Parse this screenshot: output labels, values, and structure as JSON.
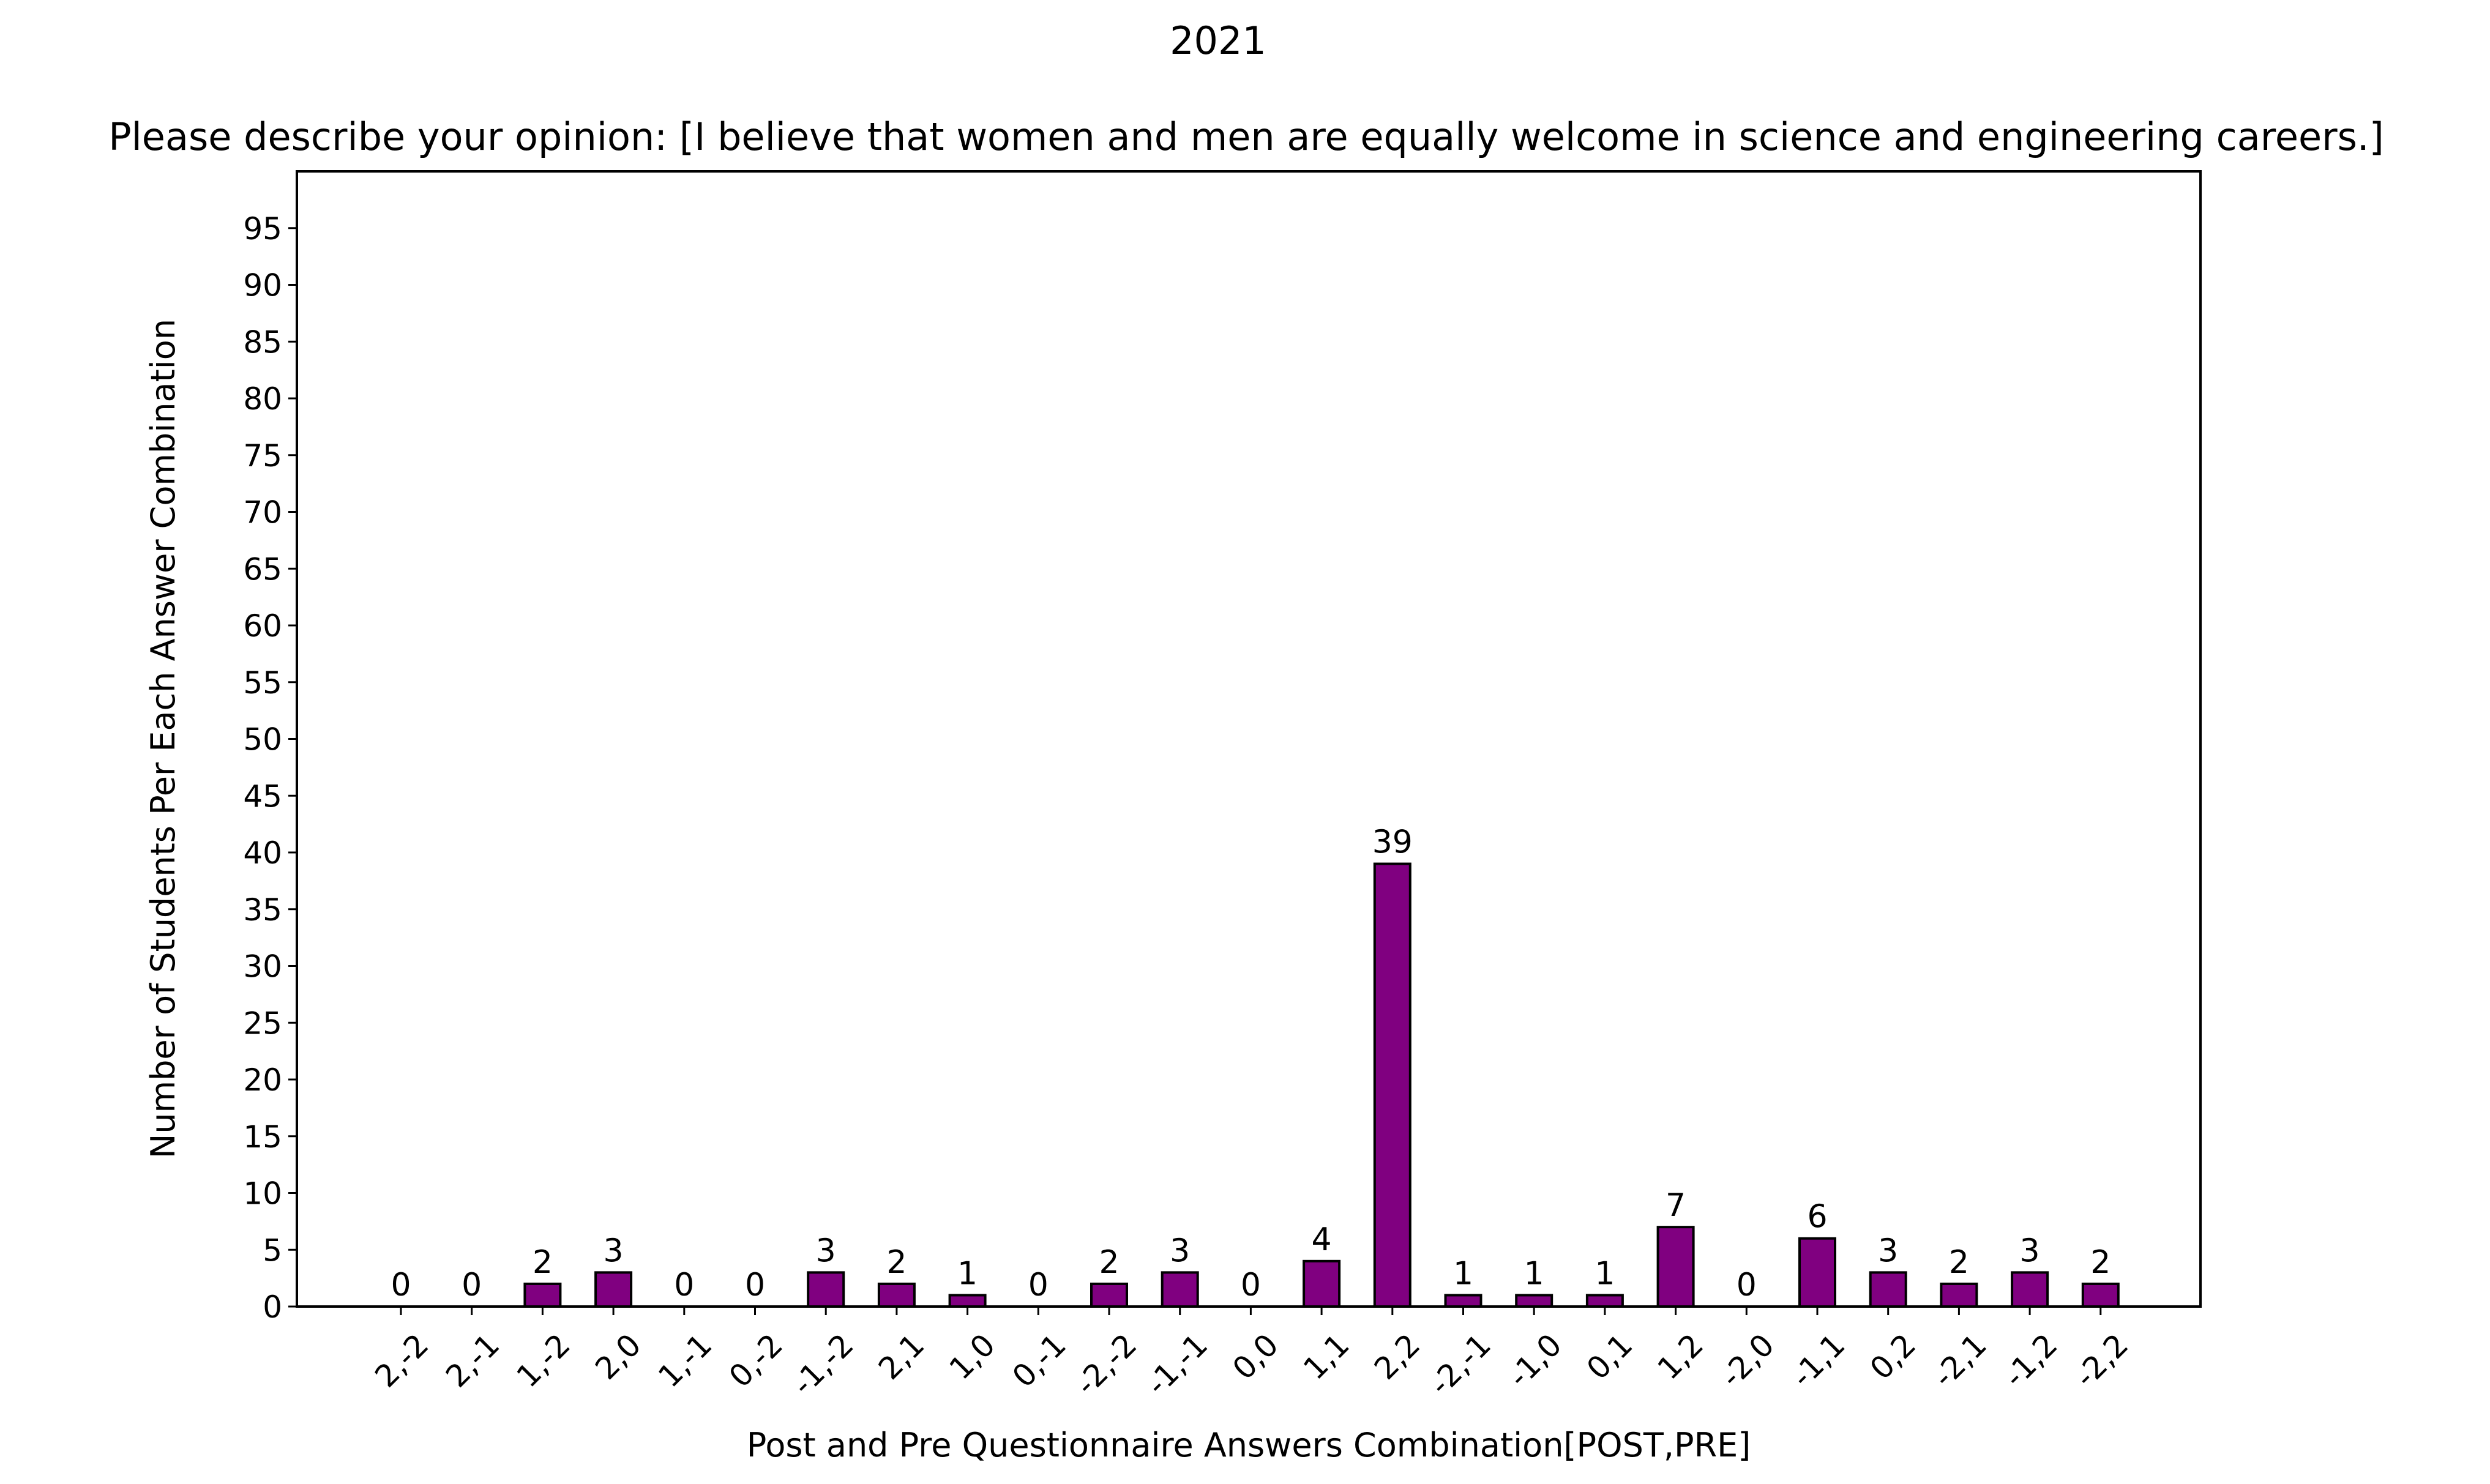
{
  "chart_data": {
    "type": "bar",
    "suptitle": "2021",
    "title": "Please describe your opinion: [I believe that women and men are equally welcome in science and engineering careers.]",
    "xlabel": "Post and Pre Questionnaire Answers Combination[POST,PRE]",
    "ylabel": "Number of Students Per Each Answer Combination",
    "categories": [
      "2,-2",
      "2,-1",
      "1,-2",
      "2,0",
      "1,-1",
      "0,-2",
      "-1,-2",
      "2,1",
      "1,0",
      "0,-1",
      "-2,-2",
      "-1,-1",
      "0,0",
      "1,1",
      "2,2",
      "-2,-1",
      "-1,0",
      "0,1",
      "1,2",
      "-2,0",
      "-1,1",
      "0,2",
      "-2,1",
      "-1,2",
      "-2,2"
    ],
    "values": [
      0,
      0,
      2,
      3,
      0,
      0,
      3,
      2,
      1,
      0,
      2,
      3,
      0,
      4,
      39,
      1,
      1,
      1,
      7,
      0,
      6,
      3,
      2,
      3,
      2
    ],
    "ylim": [
      0,
      100
    ],
    "yticks": [
      0,
      5,
      10,
      15,
      20,
      25,
      30,
      35,
      40,
      45,
      50,
      55,
      60,
      65,
      70,
      75,
      80,
      85,
      90,
      95
    ],
    "bar_color": "#800080",
    "edge_color": "#000000",
    "grid": false,
    "legend": "none"
  }
}
